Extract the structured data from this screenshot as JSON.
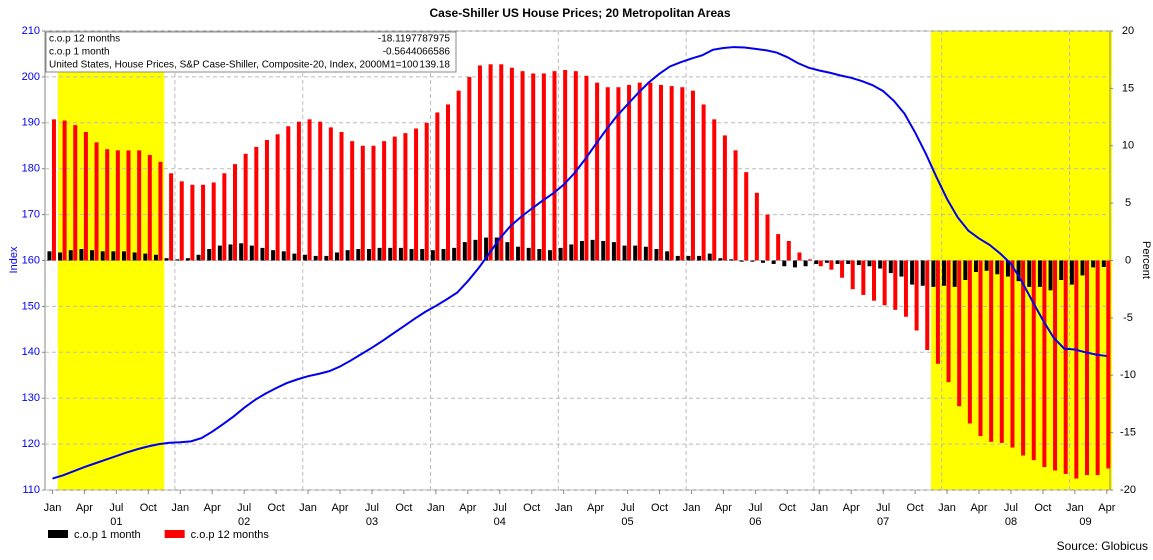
{
  "chart_data": {
    "type": "bar-line",
    "title": "Case-Shiller US House Prices; 20 Metropolitan Areas",
    "ylabel": "Index",
    "y2label": "Percent",
    "source": "Source: Globicus",
    "x": [
      "2001-01",
      "2001-02",
      "2001-03",
      "2001-04",
      "2001-05",
      "2001-06",
      "2001-07",
      "2001-08",
      "2001-09",
      "2001-10",
      "2001-11",
      "2001-12",
      "2002-01",
      "2002-02",
      "2002-03",
      "2002-04",
      "2002-05",
      "2002-06",
      "2002-07",
      "2002-08",
      "2002-09",
      "2002-10",
      "2002-11",
      "2002-12",
      "2003-01",
      "2003-02",
      "2003-03",
      "2003-04",
      "2003-05",
      "2003-06",
      "2003-07",
      "2003-08",
      "2003-09",
      "2003-10",
      "2003-11",
      "2003-12",
      "2004-01",
      "2004-02",
      "2004-03",
      "2004-04",
      "2004-05",
      "2004-06",
      "2004-07",
      "2004-08",
      "2004-09",
      "2004-10",
      "2004-11",
      "2004-12",
      "2005-01",
      "2005-02",
      "2005-03",
      "2005-04",
      "2005-05",
      "2005-06",
      "2005-07",
      "2005-08",
      "2005-09",
      "2005-10",
      "2005-11",
      "2005-12",
      "2006-01",
      "2006-02",
      "2006-03",
      "2006-04",
      "2006-05",
      "2006-06",
      "2006-07",
      "2006-08",
      "2006-09",
      "2006-10",
      "2006-11",
      "2006-12",
      "2007-01",
      "2007-02",
      "2007-03",
      "2007-04",
      "2007-05",
      "2007-06",
      "2007-07",
      "2007-08",
      "2007-09",
      "2007-10",
      "2007-11",
      "2007-12",
      "2008-01",
      "2008-02",
      "2008-03",
      "2008-04",
      "2008-05",
      "2008-06",
      "2008-07",
      "2008-08",
      "2008-09",
      "2008-10",
      "2008-11",
      "2008-12",
      "2009-01",
      "2009-02",
      "2009-03",
      "2009-04"
    ],
    "series": [
      {
        "name": "c.o.p 1 month",
        "color": "#000000",
        "axis": "y2",
        "kind": "bar",
        "values": [
          0.8,
          0.7,
          0.9,
          1.0,
          0.9,
          0.8,
          0.8,
          0.8,
          0.7,
          0.6,
          0.5,
          0.2,
          0.1,
          0.2,
          0.5,
          1.0,
          1.3,
          1.4,
          1.5,
          1.3,
          1.1,
          0.9,
          0.8,
          0.6,
          0.5,
          0.4,
          0.4,
          0.7,
          0.9,
          1.0,
          1.0,
          1.1,
          1.1,
          1.1,
          1.0,
          1.0,
          0.9,
          1.0,
          1.1,
          1.6,
          1.8,
          2.0,
          2.0,
          1.6,
          1.2,
          1.1,
          1.0,
          0.9,
          1.1,
          1.4,
          1.7,
          1.8,
          1.7,
          1.6,
          1.3,
          1.3,
          1.2,
          1.0,
          0.8,
          0.4,
          0.4,
          0.4,
          0.6,
          0.2,
          0.1,
          -0.1,
          -0.1,
          -0.2,
          -0.3,
          -0.5,
          -0.6,
          -0.5,
          -0.3,
          -0.2,
          -0.3,
          -0.3,
          -0.4,
          -0.5,
          -0.7,
          -1.1,
          -1.4,
          -2.1,
          -2.2,
          -2.3,
          -2.2,
          -2.3,
          -1.7,
          -1.0,
          -0.9,
          -1.2,
          -1.4,
          -1.8,
          -2.3,
          -2.3,
          -2.6,
          -1.7,
          -2.1,
          -1.3,
          -0.6,
          -0.5644066586
        ]
      },
      {
        "name": "c.o.p 12 months",
        "color": "#ff0000",
        "axis": "y2",
        "kind": "bar",
        "values": [
          12.3,
          12.2,
          11.8,
          11.2,
          10.3,
          9.7,
          9.6,
          9.6,
          9.6,
          9.2,
          8.6,
          7.6,
          6.9,
          6.6,
          6.6,
          6.8,
          7.6,
          8.4,
          9.3,
          9.9,
          10.5,
          11.0,
          11.7,
          12.1,
          12.3,
          12.1,
          11.6,
          11.2,
          10.4,
          10.0,
          10.0,
          10.4,
          10.8,
          11.1,
          11.5,
          12.0,
          12.9,
          13.6,
          14.8,
          16.0,
          17.0,
          17.1,
          17.1,
          16.8,
          16.5,
          16.3,
          16.3,
          16.5,
          16.6,
          16.5,
          16.1,
          15.5,
          15.1,
          15.1,
          15.3,
          15.5,
          15.5,
          15.3,
          15.2,
          15.1,
          14.8,
          13.6,
          12.3,
          10.9,
          9.6,
          7.7,
          5.9,
          4.0,
          2.3,
          1.7,
          0.7,
          0.1,
          -0.5,
          -0.8,
          -1.5,
          -2.5,
          -3.0,
          -3.5,
          -3.9,
          -4.3,
          -4.9,
          -6.1,
          -7.8,
          -9.0,
          -10.6,
          -12.7,
          -14.2,
          -15.3,
          -15.8,
          -15.9,
          -16.3,
          -17.0,
          -17.4,
          -18.0,
          -18.3,
          -18.6,
          -19.0,
          -18.7,
          -18.7,
          -18.1197787975
        ]
      },
      {
        "name": "United States, House Prices, S&P Case-Shiller, Composite-20, Index, 2000M1=100",
        "color": "#0000ee",
        "axis": "y",
        "kind": "line",
        "values": [
          112.5,
          113.2,
          114.1,
          115.0,
          115.8,
          116.6,
          117.4,
          118.2,
          118.9,
          119.5,
          120.0,
          120.3,
          120.4,
          120.6,
          121.3,
          122.7,
          124.3,
          126.0,
          127.9,
          129.6,
          131.0,
          132.2,
          133.3,
          134.1,
          134.8,
          135.3,
          135.9,
          136.9,
          138.2,
          139.6,
          141.0,
          142.5,
          144.1,
          145.7,
          147.3,
          148.8,
          150.1,
          151.5,
          153.0,
          155.5,
          158.3,
          161.5,
          164.8,
          167.5,
          169.5,
          171.3,
          173.0,
          174.6,
          176.5,
          179.0,
          182.0,
          185.3,
          188.5,
          191.5,
          194.0,
          196.5,
          198.8,
          200.7,
          202.3,
          203.2,
          204.0,
          204.7,
          205.9,
          206.3,
          206.5,
          206.4,
          206.1,
          205.8,
          205.3,
          204.3,
          203.0,
          202.0,
          201.4,
          200.9,
          200.3,
          199.8,
          199.1,
          198.2,
          196.9,
          194.8,
          192.0,
          187.9,
          183.3,
          178.2,
          173.4,
          169.4,
          166.5,
          164.8,
          163.4,
          161.5,
          159.3,
          155.5,
          151.2,
          147.0,
          143.2,
          140.8,
          140.6,
          140.0,
          139.5,
          139.18
        ]
      }
    ],
    "ylim": [
      110,
      210
    ],
    "yticks": [
      110,
      120,
      130,
      140,
      150,
      160,
      170,
      180,
      190,
      200,
      210
    ],
    "y2lim": [
      -20,
      20
    ],
    "y2ticks": [
      -20,
      -15,
      -10,
      -5,
      0,
      5,
      10,
      15,
      20
    ],
    "month_ticks": [
      {
        "value": "2001-01",
        "label": "Jan"
      },
      {
        "value": "2001-04",
        "label": "Apr"
      },
      {
        "value": "2001-07",
        "label": "Jul"
      },
      {
        "value": "2001-10",
        "label": "Oct"
      },
      {
        "value": "2002-01",
        "label": "Jan"
      },
      {
        "value": "2002-04",
        "label": "Apr"
      },
      {
        "value": "2002-07",
        "label": "Jul"
      },
      {
        "value": "2002-10",
        "label": "Oct"
      },
      {
        "value": "2003-01",
        "label": "Jan"
      },
      {
        "value": "2003-04",
        "label": "Apr"
      },
      {
        "value": "2003-07",
        "label": "Jul"
      },
      {
        "value": "2003-10",
        "label": "Oct"
      },
      {
        "value": "2004-01",
        "label": "Jan"
      },
      {
        "value": "2004-04",
        "label": "Apr"
      },
      {
        "value": "2004-07",
        "label": "Jul"
      },
      {
        "value": "2004-10",
        "label": "Oct"
      },
      {
        "value": "2005-01",
        "label": "Jan"
      },
      {
        "value": "2005-04",
        "label": "Apr"
      },
      {
        "value": "2005-07",
        "label": "Jul"
      },
      {
        "value": "2005-10",
        "label": "Oct"
      },
      {
        "value": "2006-01",
        "label": "Jan"
      },
      {
        "value": "2006-04",
        "label": "Apr"
      },
      {
        "value": "2006-07",
        "label": "Jul"
      },
      {
        "value": "2006-10",
        "label": "Oct"
      },
      {
        "value": "2007-01",
        "label": "Jan"
      },
      {
        "value": "2007-04",
        "label": "Apr"
      },
      {
        "value": "2007-07",
        "label": "Jul"
      },
      {
        "value": "2007-10",
        "label": "Oct"
      },
      {
        "value": "2008-01",
        "label": "Jan"
      },
      {
        "value": "2008-04",
        "label": "Apr"
      },
      {
        "value": "2008-07",
        "label": "Jul"
      },
      {
        "value": "2008-10",
        "label": "Oct"
      },
      {
        "value": "2009-01",
        "label": "Jan"
      },
      {
        "value": "2009-04",
        "label": "Apr"
      }
    ],
    "year_ticks": [
      {
        "value": "2001-07",
        "label": "01"
      },
      {
        "value": "2002-07",
        "label": "02"
      },
      {
        "value": "2003-07",
        "label": "03"
      },
      {
        "value": "2004-07",
        "label": "04"
      },
      {
        "value": "2005-07",
        "label": "05"
      },
      {
        "value": "2006-07",
        "label": "06"
      },
      {
        "value": "2007-07",
        "label": "07"
      },
      {
        "value": "2008-07",
        "label": "08"
      },
      {
        "value": "2009-02",
        "label": "09"
      }
    ],
    "shaded_regions": [
      {
        "start": "2001-02",
        "end": "2001-11",
        "color": "#ffff00"
      },
      {
        "start": "2007-12",
        "end": "2009-04",
        "color": "#ffff00"
      }
    ],
    "grid": true
  }
}
